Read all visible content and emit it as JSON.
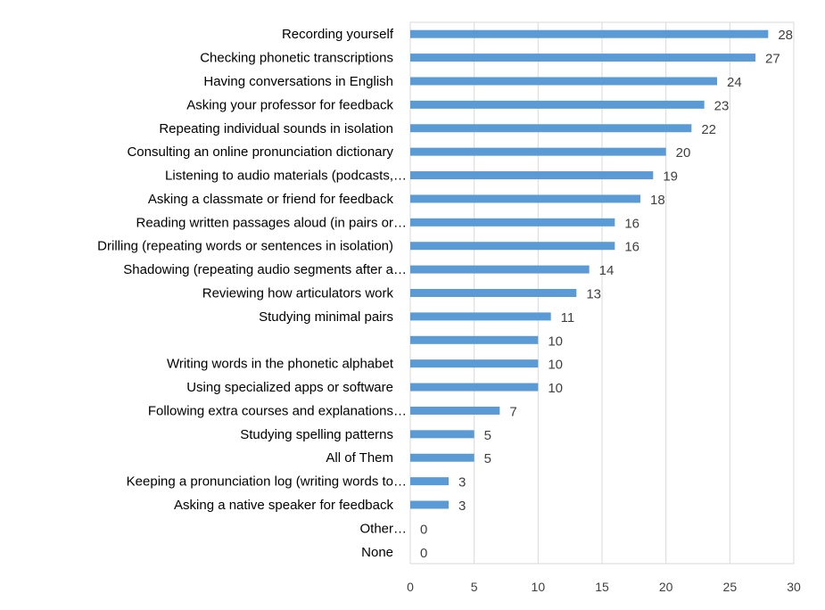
{
  "chart_data": {
    "type": "bar",
    "orientation": "horizontal",
    "title": "",
    "xlabel": "",
    "ylabel": "",
    "xlim": [
      0,
      30
    ],
    "xticks": [
      0,
      5,
      10,
      15,
      20,
      25,
      30
    ],
    "grid": true,
    "bar_color": "#5B9BD5",
    "categories": [
      "Recording yourself",
      "Checking phonetic transcriptions",
      "Having conversations in English",
      "Asking your professor for feedback",
      "Repeating individual sounds in isolation",
      "Consulting an online pronunciation dictionary",
      "Listening to audio materials (podcasts,…",
      "Asking a classmate or friend for feedback",
      "Reading written passages aloud (in pairs or…",
      "Drilling (repeating words or sentences in isolation)",
      "Shadowing (repeating audio segments after a…",
      "Reviewing how articulators work",
      "Studying minimal pairs",
      "",
      "Writing words in the phonetic alphabet",
      "Using specialized apps or software",
      "Following extra courses and explanations…",
      "Studying spelling patterns",
      "All of Them",
      "Keeping a pronunciation log (writing words to…",
      "Asking a native speaker for feedback",
      "Other…",
      "None"
    ],
    "values": [
      28,
      27,
      24,
      23,
      22,
      20,
      19,
      18,
      16,
      16,
      14,
      13,
      11,
      10,
      10,
      10,
      7,
      5,
      5,
      3,
      3,
      0,
      0
    ]
  }
}
